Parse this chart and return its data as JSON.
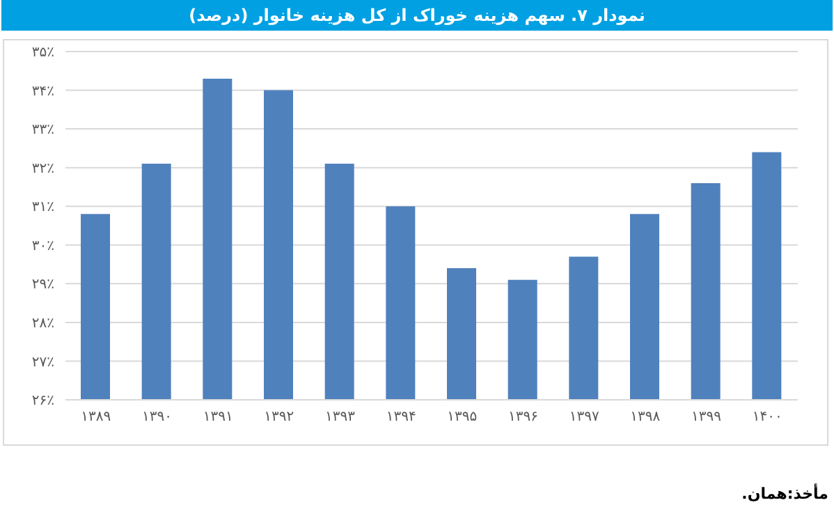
{
  "chart_data": {
    "type": "bar",
    "title": "نمودار ۷. سهم هزینه خوراک از کل هزینه خانوار (درصد)",
    "categories": [
      "۱۳۸۹",
      "۱۳۹۰",
      "۱۳۹۱",
      "۱۳۹۲",
      "۱۳۹۳",
      "۱۳۹۴",
      "۱۳۹۵",
      "۱۳۹۶",
      "۱۳۹۷",
      "۱۳۹۸",
      "۱۳۹۹",
      "۱۴۰۰"
    ],
    "values": [
      30.8,
      32.1,
      34.3,
      34.0,
      32.1,
      31.0,
      29.4,
      29.1,
      29.7,
      30.8,
      31.6,
      32.4
    ],
    "color": "#4f81bd",
    "ylim": [
      26,
      35
    ],
    "yticks": [
      {
        "value": 26,
        "label": "۲۶٪"
      },
      {
        "value": 27,
        "label": "۲۷٪"
      },
      {
        "value": 28,
        "label": "۲۸٪"
      },
      {
        "value": 29,
        "label": "۲۹٪"
      },
      {
        "value": 30,
        "label": "۳۰٪"
      },
      {
        "value": 31,
        "label": "۳۱٪"
      },
      {
        "value": 32,
        "label": "۳۲٪"
      },
      {
        "value": 33,
        "label": "۳۳٪"
      },
      {
        "value": 34,
        "label": "۳۴٪"
      },
      {
        "value": 35,
        "label": "۳۵٪"
      }
    ],
    "grid": "y",
    "annotations": [
      "مأخذ:همان."
    ]
  }
}
